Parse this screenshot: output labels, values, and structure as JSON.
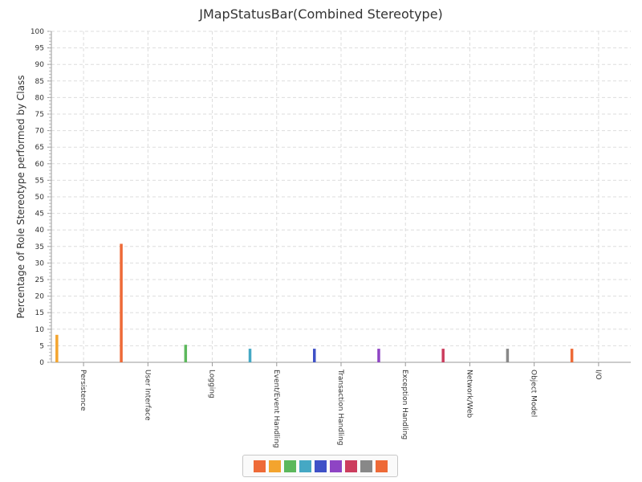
{
  "chart_data": {
    "type": "bar",
    "title": "JMapStatusBar(Combined Stereotype)",
    "xlabel": "",
    "ylabel": "Percentage of Role Stereotype performed by Class",
    "ylim": [
      0,
      100
    ],
    "ytick_step": 5,
    "grid": true,
    "legend_position": "bottom",
    "categories": [
      "Persistence",
      "User Interface",
      "Logging",
      "Event/Event Handling",
      "Transaction Handling",
      "Exception Handling",
      "Network/Web",
      "Object Model",
      "I/O"
    ],
    "values": [
      8.3,
      35.8,
      5.3,
      4.1,
      4.1,
      4.1,
      4.1,
      4.1,
      4.1
    ],
    "colors": [
      "#f3a42e",
      "#ee6a37",
      "#5cb85c",
      "#45a8c4",
      "#3f51c7",
      "#8e44c4",
      "#cc3d5e",
      "#888888",
      "#ee6a37"
    ],
    "legend_colors": [
      "#ee6a37",
      "#f3a42e",
      "#5cb85c",
      "#45a8c4",
      "#3f51c7",
      "#8e44c4",
      "#cc3d5e",
      "#888888",
      "#ee6a37"
    ]
  }
}
